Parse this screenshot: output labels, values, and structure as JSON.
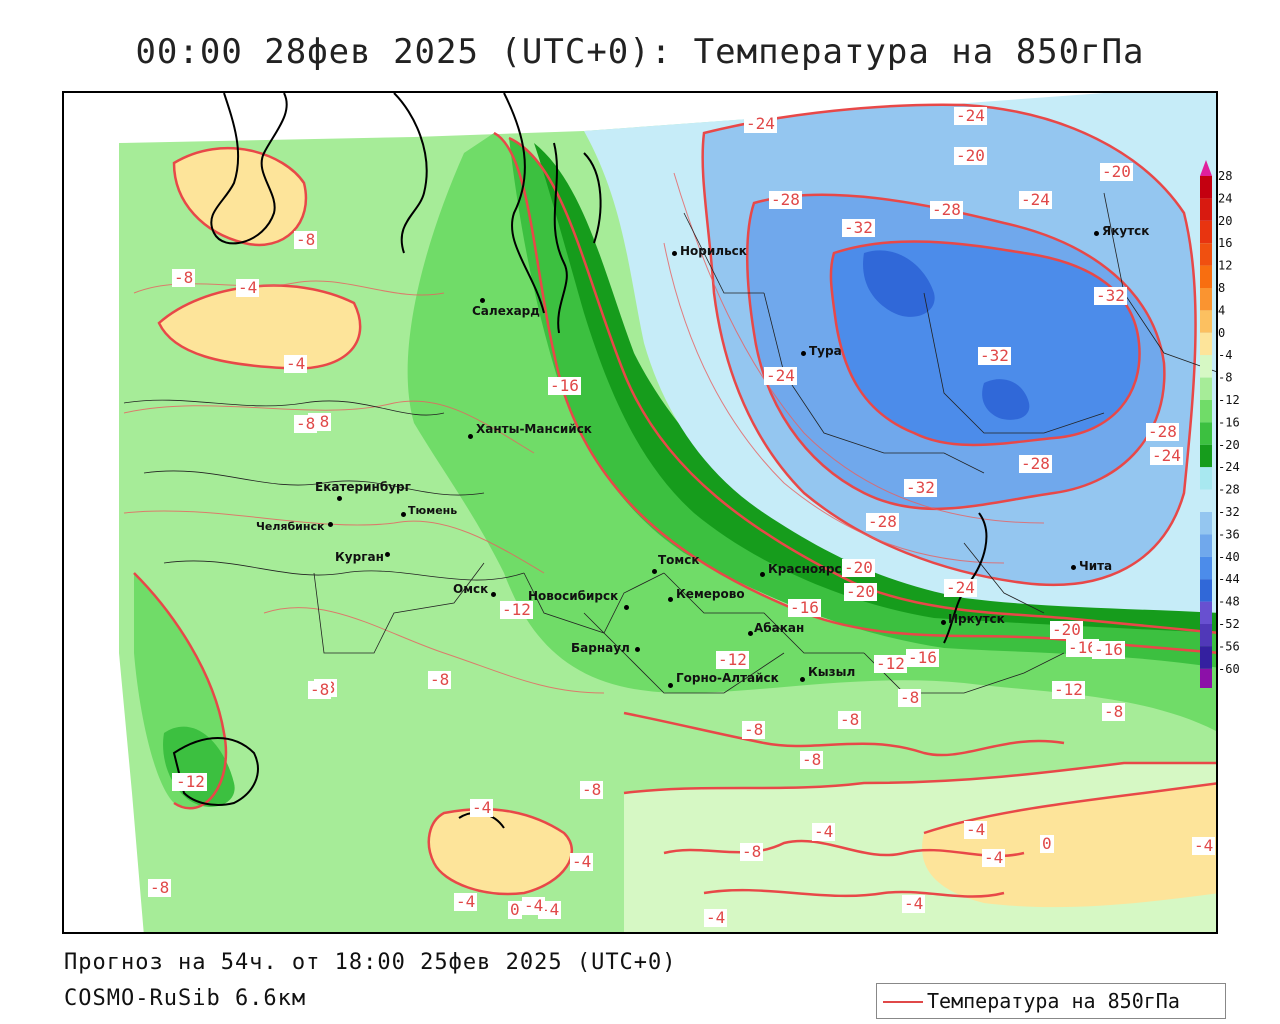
{
  "title": "00:00 28фев 2025 (UTC+0): Температура на 850гПа",
  "footer": {
    "forecast": "Прогноз на 54ч. от 18:00 25фев 2025 (UTC+0)",
    "model": "COSMO-RuSib 6.6км"
  },
  "legend": {
    "label": "Температура на 850гПа",
    "line_color": "#e04848"
  },
  "colorbar": {
    "ticks": [
      "28",
      "24",
      "20",
      "16",
      "12",
      "8",
      "4",
      "0",
      "-4",
      "-8",
      "-12",
      "-16",
      "-20",
      "-24",
      "-28",
      "-32",
      "-36",
      "-40",
      "-44",
      "-48",
      "-52",
      "-56",
      "-60"
    ],
    "colors": [
      "#c40010",
      "#d81a10",
      "#e83410",
      "#f05010",
      "#f86e10",
      "#fa9430",
      "#fcc060",
      "#fde49a",
      "#d6f8c4",
      "#a6ec98",
      "#70dc68",
      "#3cc040",
      "#169c1c",
      "#a8e8f0",
      "#c6ecf8",
      "#94c6f0",
      "#70a8ec",
      "#4c8cea",
      "#3068d8",
      "#6850d0",
      "#5038b8",
      "#3420a0",
      "#8c10a8"
    ],
    "top_color": "#e0209c",
    "bottom_color": "#a020c8"
  },
  "cities": [
    {
      "name": "Норильск"
    },
    {
      "name": "Салехард"
    },
    {
      "name": "Якутск"
    },
    {
      "name": "Тура"
    },
    {
      "name": "Ханты-Мансийск"
    },
    {
      "name": "Екатеринбург"
    },
    {
      "name": "Тюмень"
    },
    {
      "name": "Челябинск"
    },
    {
      "name": "Курган"
    },
    {
      "name": "Омск"
    },
    {
      "name": "Новосибирск"
    },
    {
      "name": "Томск"
    },
    {
      "name": "Кемерово"
    },
    {
      "name": "Красноярск"
    },
    {
      "name": "Абакан"
    },
    {
      "name": "Барнаул"
    },
    {
      "name": "Горно-Алтайск"
    },
    {
      "name": "Кызыл"
    },
    {
      "name": "Иркутск"
    },
    {
      "name": "Чита"
    }
  ],
  "contour_labels": [
    "-24",
    "-24",
    "-20",
    "-20",
    "-28",
    "-24",
    "-32",
    "-28",
    "-16",
    "-12",
    "-8",
    "-8",
    "-4",
    "-4",
    "-8",
    "-8",
    "-8",
    "-12",
    "-12",
    "-16",
    "-20",
    "-28",
    "-32",
    "-28",
    "-32",
    "-32",
    "-24",
    "-28",
    "-24",
    "-20",
    "-16",
    "-12",
    "-8",
    "-8",
    "-8",
    "-8",
    "-4",
    "-4",
    "-4",
    "-4",
    "0",
    "-4",
    "-8",
    "-4",
    "-8",
    "-4",
    "-4",
    "-8",
    "-12",
    "0",
    "-4",
    "-4",
    "-8",
    "-16",
    "-12",
    "-20",
    "-24",
    "-8",
    "-16",
    "-4",
    "-8"
  ]
}
